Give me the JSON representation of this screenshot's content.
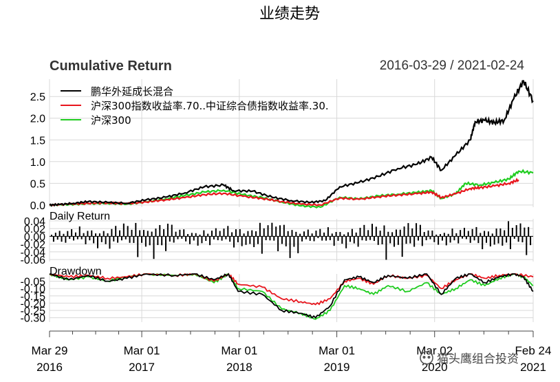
{
  "figure_title": "业绩走势",
  "watermark": "猫头鹰组合投资",
  "chart_data": [
    {
      "type": "line",
      "title": "Cumulative Return",
      "date_range": "2016-03-29 / 2021-02-24",
      "ylim": [
        -0.05,
        2.9
      ],
      "yticks": [
        "0.0",
        "0.5",
        "1.0",
        "1.5",
        "2.0",
        "2.5"
      ],
      "ytick_values": [
        0,
        0.5,
        1.0,
        1.5,
        2.0,
        2.5
      ],
      "legend_position": "top-left",
      "series": [
        {
          "name": "鹏华外延成长混合",
          "color": "#000000",
          "points": [
            [
              0,
              0
            ],
            [
              0.02,
              0.01
            ],
            [
              0.05,
              0.04
            ],
            [
              0.08,
              0.08
            ],
            [
              0.12,
              0.06
            ],
            [
              0.16,
              0.04
            ],
            [
              0.2,
              0.12
            ],
            [
              0.24,
              0.18
            ],
            [
              0.28,
              0.28
            ],
            [
              0.32,
              0.42
            ],
            [
              0.36,
              0.46
            ],
            [
              0.38,
              0.33
            ],
            [
              0.42,
              0.32
            ],
            [
              0.46,
              0.18
            ],
            [
              0.5,
              0.1
            ],
            [
              0.54,
              0.06
            ],
            [
              0.57,
              0.1
            ],
            [
              0.6,
              0.42
            ],
            [
              0.64,
              0.52
            ],
            [
              0.68,
              0.66
            ],
            [
              0.72,
              0.84
            ],
            [
              0.76,
              0.94
            ],
            [
              0.79,
              1.1
            ],
            [
              0.81,
              0.8
            ],
            [
              0.84,
              1.15
            ],
            [
              0.87,
              1.5
            ],
            [
              0.88,
              1.92
            ],
            [
              0.9,
              1.95
            ],
            [
              0.92,
              1.9
            ],
            [
              0.94,
              1.95
            ],
            [
              0.96,
              2.45
            ],
            [
              0.98,
              2.86
            ],
            [
              1.0,
              2.4
            ]
          ]
        },
        {
          "name": "沪深300指数收益率.70..中证综合债指数收益率.30.",
          "color": "#e8141c",
          "points": [
            [
              0,
              0
            ],
            [
              0.04,
              0.02
            ],
            [
              0.08,
              0.04
            ],
            [
              0.12,
              0.05
            ],
            [
              0.16,
              0.03
            ],
            [
              0.2,
              0.07
            ],
            [
              0.24,
              0.12
            ],
            [
              0.28,
              0.17
            ],
            [
              0.32,
              0.24
            ],
            [
              0.36,
              0.27
            ],
            [
              0.4,
              0.2
            ],
            [
              0.44,
              0.15
            ],
            [
              0.48,
              0.08
            ],
            [
              0.52,
              0.02
            ],
            [
              0.56,
              0.0
            ],
            [
              0.6,
              0.16
            ],
            [
              0.64,
              0.13
            ],
            [
              0.68,
              0.19
            ],
            [
              0.72,
              0.23
            ],
            [
              0.76,
              0.26
            ],
            [
              0.79,
              0.3
            ],
            [
              0.81,
              0.17
            ],
            [
              0.84,
              0.26
            ],
            [
              0.87,
              0.38
            ],
            [
              0.89,
              0.4
            ],
            [
              0.92,
              0.44
            ],
            [
              0.95,
              0.5
            ],
            [
              0.97,
              0.58
            ]
          ]
        },
        {
          "name": "沪深300",
          "color": "#1fcc1f",
          "points": [
            [
              0,
              0
            ],
            [
              0.04,
              0.01
            ],
            [
              0.08,
              0.03
            ],
            [
              0.12,
              0.04
            ],
            [
              0.16,
              0.02
            ],
            [
              0.2,
              0.07
            ],
            [
              0.24,
              0.14
            ],
            [
              0.28,
              0.22
            ],
            [
              0.32,
              0.3
            ],
            [
              0.36,
              0.34
            ],
            [
              0.4,
              0.24
            ],
            [
              0.44,
              0.17
            ],
            [
              0.48,
              0.07
            ],
            [
              0.52,
              -0.02
            ],
            [
              0.56,
              -0.05
            ],
            [
              0.6,
              0.18
            ],
            [
              0.64,
              0.14
            ],
            [
              0.68,
              0.21
            ],
            [
              0.72,
              0.25
            ],
            [
              0.76,
              0.29
            ],
            [
              0.79,
              0.33
            ],
            [
              0.81,
              0.15
            ],
            [
              0.84,
              0.26
            ],
            [
              0.86,
              0.5
            ],
            [
              0.89,
              0.46
            ],
            [
              0.92,
              0.52
            ],
            [
              0.95,
              0.6
            ],
            [
              0.97,
              0.78
            ],
            [
              1.0,
              0.74
            ]
          ]
        }
      ]
    },
    {
      "type": "bar",
      "title": "Daily Return",
      "ylim": [
        -0.065,
        0.045
      ],
      "yticks": [
        "0.04",
        "0.02",
        "0.00",
        "-0.02",
        "-0.04",
        "-0.06"
      ],
      "ytick_values": [
        0.04,
        0.02,
        0.0,
        -0.02,
        -0.04,
        -0.06
      ],
      "series": [
        {
          "color": "#000000",
          "values": [
            0.012,
            -0.014,
            0.018,
            -0.009,
            0.021,
            -0.016,
            0.008,
            -0.022,
            0.015,
            -0.011,
            0.019,
            -0.024,
            0.01,
            -0.018,
            0.026,
            -0.013,
            0.009,
            -0.028,
            0.017,
            -0.012,
            0.022,
            -0.019,
            0.014,
            -0.031,
            0.02,
            -0.015,
            0.028,
            -0.021,
            0.012,
            -0.036,
            0.024,
            -0.017,
            0.03,
            -0.026,
            0.016,
            -0.022,
            0.033,
            -0.02,
            0.027,
            -0.03,
            0.018,
            -0.024,
            0.041,
            -0.064,
            0.022,
            -0.018,
            0.029,
            -0.027,
            0.035,
            -0.023,
            0.026,
            -0.06,
            0.032,
            -0.025,
            0.038,
            -0.029,
            0.021,
            -0.058,
            0.034,
            -0.027,
            0.03,
            -0.044
          ]
        }
      ]
    },
    {
      "type": "line",
      "title": "Drawdown",
      "ylim": [
        -0.33,
        0.0
      ],
      "yticks": [
        "-0.05",
        "-0.10",
        "-0.15",
        "-0.20",
        "-0.25",
        "-0.30"
      ],
      "ytick_values": [
        -0.05,
        -0.1,
        -0.15,
        -0.2,
        -0.25,
        -0.3
      ],
      "series": [
        {
          "color": "#000000",
          "points": [
            [
              0,
              0
            ],
            [
              0.04,
              -0.04
            ],
            [
              0.08,
              -0.01
            ],
            [
              0.12,
              -0.05
            ],
            [
              0.16,
              -0.03
            ],
            [
              0.2,
              0
            ],
            [
              0.26,
              -0.01
            ],
            [
              0.3,
              0
            ],
            [
              0.34,
              -0.04
            ],
            [
              0.37,
              0
            ],
            [
              0.39,
              -0.12
            ],
            [
              0.44,
              -0.14
            ],
            [
              0.48,
              -0.25
            ],
            [
              0.52,
              -0.27
            ],
            [
              0.55,
              -0.3
            ],
            [
              0.58,
              -0.22
            ],
            [
              0.61,
              -0.04
            ],
            [
              0.64,
              -0.02
            ],
            [
              0.67,
              -0.06
            ],
            [
              0.7,
              -0.01
            ],
            [
              0.74,
              -0.03
            ],
            [
              0.78,
              0
            ],
            [
              0.81,
              -0.14
            ],
            [
              0.84,
              -0.03
            ],
            [
              0.87,
              0
            ],
            [
              0.9,
              -0.06
            ],
            [
              0.93,
              -0.02
            ],
            [
              0.96,
              0
            ],
            [
              0.98,
              -0.02
            ],
            [
              1.0,
              -0.12
            ]
          ]
        },
        {
          "color": "#e8141c",
          "points": [
            [
              0,
              0
            ],
            [
              0.04,
              -0.02
            ],
            [
              0.08,
              -0.01
            ],
            [
              0.12,
              -0.03
            ],
            [
              0.16,
              -0.02
            ],
            [
              0.2,
              0
            ],
            [
              0.26,
              -0.01
            ],
            [
              0.3,
              0
            ],
            [
              0.34,
              -0.05
            ],
            [
              0.37,
              0
            ],
            [
              0.39,
              -0.07
            ],
            [
              0.44,
              -0.09
            ],
            [
              0.48,
              -0.17
            ],
            [
              0.52,
              -0.19
            ],
            [
              0.55,
              -0.21
            ],
            [
              0.58,
              -0.17
            ],
            [
              0.61,
              -0.05
            ],
            [
              0.64,
              -0.03
            ],
            [
              0.67,
              -0.07
            ],
            [
              0.7,
              -0.01
            ],
            [
              0.74,
              -0.03
            ],
            [
              0.78,
              -0.01
            ],
            [
              0.81,
              -0.1
            ],
            [
              0.84,
              -0.04
            ],
            [
              0.87,
              0
            ],
            [
              0.9,
              -0.03
            ],
            [
              0.93,
              -0.01
            ],
            [
              0.96,
              0
            ],
            [
              1.0,
              -0.02
            ]
          ]
        },
        {
          "color": "#1fcc1f",
          "points": [
            [
              0,
              0
            ],
            [
              0.04,
              -0.04
            ],
            [
              0.08,
              -0.02
            ],
            [
              0.12,
              -0.05
            ],
            [
              0.16,
              -0.02
            ],
            [
              0.2,
              0
            ],
            [
              0.26,
              -0.01
            ],
            [
              0.3,
              0
            ],
            [
              0.34,
              -0.06
            ],
            [
              0.37,
              0
            ],
            [
              0.39,
              -0.1
            ],
            [
              0.44,
              -0.12
            ],
            [
              0.48,
              -0.24
            ],
            [
              0.52,
              -0.27
            ],
            [
              0.55,
              -0.31
            ],
            [
              0.58,
              -0.25
            ],
            [
              0.61,
              -0.08
            ],
            [
              0.64,
              -0.1
            ],
            [
              0.67,
              -0.14
            ],
            [
              0.7,
              -0.08
            ],
            [
              0.74,
              -0.12
            ],
            [
              0.78,
              -0.06
            ],
            [
              0.81,
              -0.14
            ],
            [
              0.84,
              -0.1
            ],
            [
              0.87,
              -0.04
            ],
            [
              0.9,
              -0.08
            ],
            [
              0.93,
              -0.03
            ],
            [
              0.96,
              0
            ],
            [
              0.98,
              -0.02
            ],
            [
              1.0,
              -0.08
            ]
          ]
        }
      ]
    }
  ],
  "x_axis": {
    "ticks": [
      {
        "top": "Mar 29",
        "bottom": "2016",
        "pos": 0.0
      },
      {
        "top": "Mar 01",
        "bottom": "2017",
        "pos": 0.1907
      },
      {
        "top": "Mar 01",
        "bottom": "2018",
        "pos": 0.3924
      },
      {
        "top": "Mar 01",
        "bottom": "2019",
        "pos": 0.594
      },
      {
        "top": "Mar 02",
        "bottom": "2020",
        "pos": 0.7962
      },
      {
        "top": "Feb 24",
        "bottom": "2021",
        "pos": 1.0
      }
    ]
  }
}
